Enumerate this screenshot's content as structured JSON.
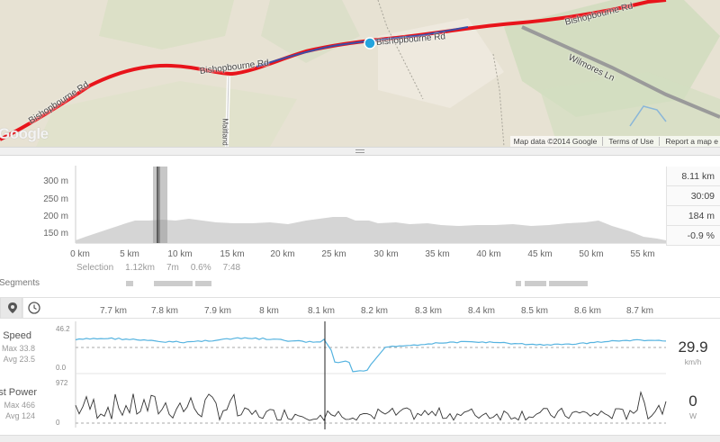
{
  "map": {
    "road_labels": [
      "Bishopbourne Rd",
      "Bishopbourne Rd",
      "Bishopbourne Rd",
      "Bishopbourne Rd",
      "Wilmores Ln",
      "Maitland"
    ],
    "logo": "Google",
    "footer": [
      "Map data ©2014 Google",
      "Terms of Use",
      "Report a map e"
    ],
    "colors": {
      "route": "#e8141b",
      "route_hover": "#3a4fa8",
      "marker": "#25a4dd"
    }
  },
  "elevation": {
    "y_labels": [
      "300 m",
      "250 m",
      "200 m",
      "150 m"
    ],
    "x_labels": [
      "0 km",
      "5 km",
      "10 km",
      "15 km",
      "20 km",
      "25 km",
      "30 km",
      "35 km",
      "40 km",
      "45 km",
      "50 km",
      "55 km"
    ],
    "selection": {
      "label": "Selection",
      "distance": "1.12km",
      "time": "7m",
      "grade": "0.6%",
      "pace": "7:48"
    },
    "segments_label": "Segments",
    "stats": [
      "8.11 km",
      "30:09",
      "184 m",
      "-0.9 %"
    ]
  },
  "stream_tabs": [
    {
      "name": "map-pin-icon"
    },
    {
      "name": "clock-icon"
    }
  ],
  "km_axis": [
    "7.7 km",
    "7.8 km",
    "7.9 km",
    "8 km",
    "8.1 km",
    "8.2 km",
    "8.3 km",
    "8.4 km",
    "8.5 km",
    "8.6 km",
    "8.7 km"
  ],
  "speed": {
    "name": "Speed",
    "max": "Max 33.8",
    "avg": "Avg 23.5",
    "top": "46.2",
    "bottom": "0.0",
    "value": "29.9",
    "unit": "km/h",
    "color": "#55b3e0"
  },
  "power": {
    "name": "Est Power",
    "max": "Max 466",
    "avg": "Avg 124",
    "top": "972",
    "bottom": "0",
    "value": "0",
    "unit": "W",
    "color": "#333333"
  }
}
